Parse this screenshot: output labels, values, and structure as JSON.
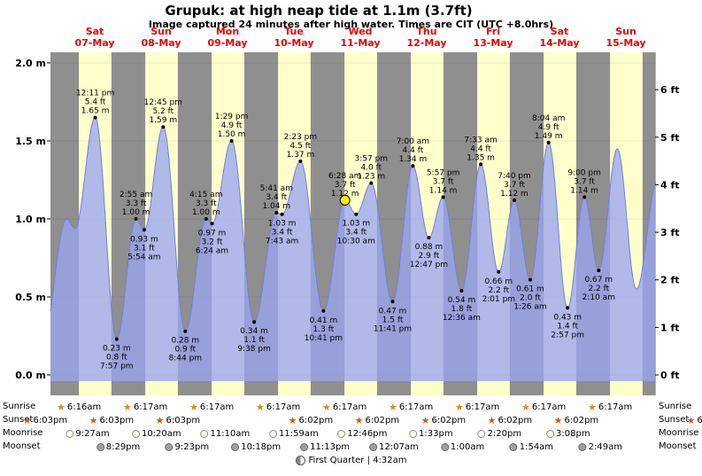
{
  "chart_data": {
    "type": "area",
    "title": "Grupuk: at high  neap tide at 1.1m (3.7ft)",
    "subtitle": "Image captured 24 minutes after high water. Times are CIT (UTC +8.0hrs)",
    "ylim_m": [
      0.0,
      2.0
    ],
    "yticks_m": [
      {
        "v": 2.0,
        "label": "2.0 m"
      },
      {
        "v": 1.5,
        "label": "1.5 m"
      },
      {
        "v": 1.0,
        "label": "1.0 m"
      },
      {
        "v": 0.5,
        "label": "0.5 m"
      },
      {
        "v": 0.0,
        "label": "0.0 m"
      }
    ],
    "yticks_ft": [
      {
        "v": 6,
        "label": "6 ft"
      },
      {
        "v": 5,
        "label": "5 ft"
      },
      {
        "v": 4,
        "label": "4 ft"
      },
      {
        "v": 3,
        "label": "3 ft"
      },
      {
        "v": 2,
        "label": "2 ft"
      },
      {
        "v": 1,
        "label": "1 ft"
      },
      {
        "v": 0,
        "label": "0 ft"
      }
    ],
    "days": [
      {
        "dow": "Sat",
        "date": "07-May"
      },
      {
        "dow": "Sun",
        "date": "08-May"
      },
      {
        "dow": "Mon",
        "date": "09-May"
      },
      {
        "dow": "Tue",
        "date": "10-May"
      },
      {
        "dow": "Wed",
        "date": "11-May"
      },
      {
        "dow": "Thu",
        "date": "12-May"
      },
      {
        "dow": "Fri",
        "date": "13-May"
      },
      {
        "dow": "Sat",
        "date": "14-May"
      },
      {
        "dow": "Sun",
        "date": "15-May"
      }
    ],
    "points": [
      {
        "t": -7.0,
        "h": 0.2,
        "kind": "low",
        "labeled": false
      },
      {
        "t": 1.8,
        "h": 1.0,
        "kind": "high",
        "labeled": false
      },
      {
        "t": 4.9,
        "h": 0.94,
        "kind": "low",
        "labeled": false
      },
      {
        "t": 12.18,
        "h": 1.65,
        "kind": "high",
        "labeled": true,
        "time": "12:11 pm",
        "ft": "5.4 ft",
        "m": "1.65 m"
      },
      {
        "t": 19.95,
        "h": 0.23,
        "kind": "low",
        "labeled": true,
        "time": "7:57 pm",
        "ft": "0.8 ft",
        "m": "0.23 m"
      },
      {
        "t": 26.92,
        "h": 1.0,
        "kind": "high",
        "labeled": true,
        "time": "2:55 am",
        "ft": "3.3 ft",
        "m": "1.00 m"
      },
      {
        "t": 29.9,
        "h": 0.93,
        "kind": "low",
        "labeled": true,
        "time": "5:54 am",
        "ft": "3.1 ft",
        "m": "0.93 m"
      },
      {
        "t": 36.75,
        "h": 1.59,
        "kind": "high",
        "labeled": true,
        "time": "12:45 pm",
        "ft": "5.2 ft",
        "m": "1.59 m"
      },
      {
        "t": 44.73,
        "h": 0.28,
        "kind": "low",
        "labeled": true,
        "time": "8:44 pm",
        "ft": "0.9 ft",
        "m": "0.28 m"
      },
      {
        "t": 52.25,
        "h": 1.0,
        "kind": "high",
        "labeled": true,
        "time": "4:15 am",
        "ft": "3.3 ft",
        "m": "1.00 m"
      },
      {
        "t": 54.4,
        "h": 0.97,
        "kind": "low",
        "labeled": true,
        "time": "6:24 am",
        "ft": "3.2 ft",
        "m": "0.97 m"
      },
      {
        "t": 61.48,
        "h": 1.5,
        "kind": "high",
        "labeled": true,
        "time": "1:29 pm",
        "ft": "4.9 ft",
        "m": "1.50 m"
      },
      {
        "t": 69.63,
        "h": 0.34,
        "kind": "low",
        "labeled": true,
        "time": "9:38 pm",
        "ft": "1.1 ft",
        "m": "0.34 m"
      },
      {
        "t": 77.68,
        "h": 1.04,
        "kind": "high",
        "labeled": true,
        "time": "5:41 am",
        "ft": "3.4 ft",
        "m": "1.04 m"
      },
      {
        "t": 79.72,
        "h": 1.03,
        "kind": "low",
        "labeled": true,
        "time": "7:43 am",
        "ft": "3.4 ft",
        "m": "1.03 m"
      },
      {
        "t": 86.38,
        "h": 1.37,
        "kind": "high",
        "labeled": true,
        "time": "2:23 pm",
        "ft": "4.5 ft",
        "m": "1.37 m"
      },
      {
        "t": 94.68,
        "h": 0.41,
        "kind": "low",
        "labeled": true,
        "time": "10:41 pm",
        "ft": "1.3 ft",
        "m": "0.41 m"
      },
      {
        "t": 102.47,
        "h": 1.12,
        "kind": "high",
        "labeled": true,
        "current": true,
        "time": "6:28 am",
        "ft": "3.7 ft",
        "m": "1.12 m"
      },
      {
        "t": 106.5,
        "h": 1.03,
        "kind": "low",
        "labeled": true,
        "time": "10:30 am",
        "ft": "3.4 ft",
        "m": "1.03 m"
      },
      {
        "t": 111.95,
        "h": 1.23,
        "kind": "high",
        "labeled": true,
        "time": "3:57 pm",
        "ft": "4.0 ft",
        "m": "1.23 m"
      },
      {
        "t": 119.68,
        "h": 0.47,
        "kind": "low",
        "labeled": true,
        "time": "11:41 pm",
        "ft": "1.5 ft",
        "m": "0.47 m"
      },
      {
        "t": 127.0,
        "h": 1.34,
        "kind": "high",
        "labeled": true,
        "time": "7:00 am",
        "ft": "4.4 ft",
        "m": "1.34 m"
      },
      {
        "t": 132.78,
        "h": 0.88,
        "kind": "low",
        "labeled": true,
        "time": "12:47 pm",
        "ft": "2.9 ft",
        "m": "0.88 m"
      },
      {
        "t": 137.95,
        "h": 1.14,
        "kind": "high",
        "labeled": true,
        "time": "5:57 pm",
        "ft": "3.7 ft",
        "m": "1.14 m"
      },
      {
        "t": 144.6,
        "h": 0.54,
        "kind": "low",
        "labeled": true,
        "time": "12:36 am",
        "ft": "1.8 ft",
        "m": "0.54 m"
      },
      {
        "t": 151.55,
        "h": 1.35,
        "kind": "high",
        "labeled": true,
        "time": "7:33 am",
        "ft": "4.4 ft",
        "m": "1.35 m"
      },
      {
        "t": 158.02,
        "h": 0.66,
        "kind": "low",
        "labeled": true,
        "time": "2:01 pm",
        "ft": "2.2 ft",
        "m": "0.66 m"
      },
      {
        "t": 163.67,
        "h": 1.12,
        "kind": "high",
        "labeled": true,
        "time": "7:40 pm",
        "ft": "3.7 ft",
        "m": "1.12 m"
      },
      {
        "t": 169.43,
        "h": 0.61,
        "kind": "low",
        "labeled": true,
        "time": "1:26 am",
        "ft": "2.0 ft",
        "m": "0.61 m"
      },
      {
        "t": 176.07,
        "h": 1.49,
        "kind": "high",
        "labeled": true,
        "time": "8:04 am",
        "ft": "4.9 ft",
        "m": "1.49 m"
      },
      {
        "t": 182.95,
        "h": 0.43,
        "kind": "low",
        "labeled": true,
        "time": "2:57 pm",
        "ft": "1.4 ft",
        "m": "0.43 m"
      },
      {
        "t": 189.0,
        "h": 1.14,
        "kind": "high",
        "labeled": true,
        "time": "9:00 pm",
        "ft": "3.7 ft",
        "m": "1.14 m"
      },
      {
        "t": 194.17,
        "h": 0.67,
        "kind": "low",
        "labeled": true,
        "time": "2:10 am",
        "ft": "2.2 ft",
        "m": "0.67 m"
      },
      {
        "t": 200.9,
        "h": 1.45,
        "kind": "high",
        "labeled": false
      },
      {
        "t": 207.8,
        "h": 0.55,
        "kind": "low",
        "labeled": false
      },
      {
        "t": 215.5,
        "h": 1.25,
        "kind": "high",
        "labeled": false
      }
    ]
  },
  "astro": {
    "sunrise": {
      "label": "Sunrise",
      "times": [
        "6:16am",
        "6:17am",
        "6:17am",
        "6:17am",
        "6:17am",
        "6:17am",
        "6:17am",
        "6:17am",
        "6:17am"
      ]
    },
    "sunset": {
      "label": "Sunset",
      "times": [
        "6:03pm",
        "6:03pm",
        "6:03pm",
        "6:02pm",
        "6:02pm",
        "6:02pm",
        "6:02pm",
        "6:02pm",
        "6:01pm"
      ]
    },
    "moonrise": {
      "label": "Moonrise",
      "times": [
        "9:27am",
        "10:20am",
        "11:10am",
        "11:59am",
        "12:46pm",
        "1:33pm",
        "2:20pm",
        "3:08pm"
      ]
    },
    "moonset": {
      "label": "Moonset",
      "times": [
        "8:29pm",
        "9:23pm",
        "10:18pm",
        "11:13pm",
        "12:07am",
        "1:00am",
        "1:54am",
        "2:49am"
      ]
    },
    "moon_phase": "First Quarter | 4:32am"
  },
  "colors": {
    "band_day": "#ffffcc",
    "band_night": "#8f8f8f",
    "tide_fill": "#9aa5ee",
    "tide_edge": "#7280d8",
    "date_red": "#ee0000",
    "current_marker": "#ffec00"
  }
}
